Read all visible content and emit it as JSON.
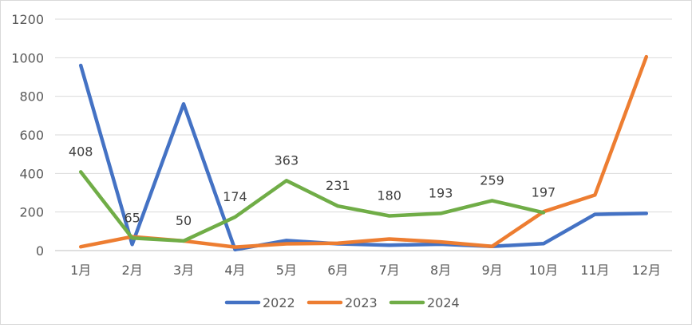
{
  "chart_data": {
    "type": "line",
    "title": "",
    "xlabel": "",
    "ylabel": "",
    "categories": [
      "1月",
      "2月",
      "3月",
      "4月",
      "5月",
      "6月",
      "7月",
      "8月",
      "9月",
      "10月",
      "11月",
      "12月"
    ],
    "ylim": [
      0,
      1200
    ],
    "yticks": [
      "0",
      "200",
      "400",
      "600",
      "800",
      "1000",
      "1200"
    ],
    "grid": "horizontal",
    "legend_position": "bottom",
    "series": [
      {
        "name": "2022",
        "color": "#4472c4",
        "values": [
          960,
          32,
          760,
          5,
          52,
          35,
          28,
          33,
          22,
          36,
          188,
          193
        ],
        "data_labels": []
      },
      {
        "name": "2023",
        "color": "#ed7d31",
        "values": [
          20,
          72,
          50,
          18,
          35,
          38,
          60,
          45,
          22,
          202,
          288,
          1005
        ],
        "data_labels": []
      },
      {
        "name": "2024",
        "color": "#70ad47",
        "values": [
          408,
          65,
          50,
          174,
          363,
          231,
          180,
          193,
          259,
          197,
          null,
          null
        ],
        "data_labels": [
          "408",
          "65",
          "50",
          "174",
          "363",
          "231",
          "180",
          "193",
          "259",
          "197"
        ]
      }
    ]
  }
}
